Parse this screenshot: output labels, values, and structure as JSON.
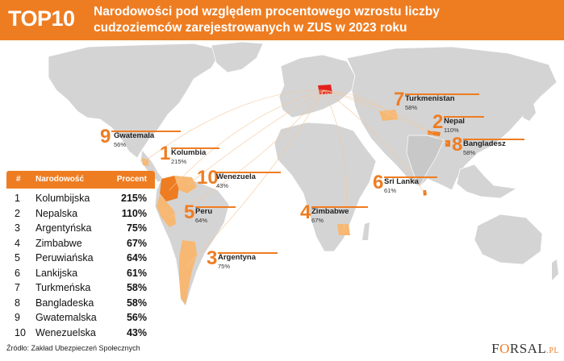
{
  "header": {
    "badge": "TOP10",
    "title": "Narodowości pod względem procentowego wzrostu liczby cudzoziemców zarejestrowanych w ZUS w 2023 roku"
  },
  "colors": {
    "accent": "#ee7d22",
    "highlight_light": "#f7b873",
    "land": "#d4d4d4",
    "poland": "#e3211c"
  },
  "map_tags": [
    {
      "rank": "1",
      "name": "Kolumbia",
      "pct": "215%"
    },
    {
      "rank": "2",
      "name": "Nepal",
      "pct": "110%"
    },
    {
      "rank": "3",
      "name": "Argentyna",
      "pct": "75%"
    },
    {
      "rank": "4",
      "name": "Zimbabwe",
      "pct": "67%"
    },
    {
      "rank": "5",
      "name": "Peru",
      "pct": "64%"
    },
    {
      "rank": "6",
      "name": "Sri Lanka",
      "pct": "61%"
    },
    {
      "rank": "7",
      "name": "Turkmenistan",
      "pct": "58%"
    },
    {
      "rank": "8",
      "name": "Bangladesz",
      "pct": "58%"
    },
    {
      "rank": "9",
      "name": "Gwatemala",
      "pct": "56%"
    },
    {
      "rank": "10",
      "name": "Wenezuela",
      "pct": "43%"
    }
  ],
  "table": {
    "col_rank": "#",
    "col_country": "Narodowość",
    "col_pct": "Procent",
    "rows": [
      {
        "rank": "1",
        "country": "Kolumbijska",
        "pct": "215%"
      },
      {
        "rank": "2",
        "country": "Nepalska",
        "pct": "110%"
      },
      {
        "rank": "3",
        "country": "Argentyńska",
        "pct": "75%"
      },
      {
        "rank": "4",
        "country": "Zimbabwe",
        "pct": "67%"
      },
      {
        "rank": "5",
        "country": "Peruwiańska",
        "pct": "64%"
      },
      {
        "rank": "6",
        "country": "Lankijska",
        "pct": "61%"
      },
      {
        "rank": "7",
        "country": "Turkmeńska",
        "pct": "58%"
      },
      {
        "rank": "8",
        "country": "Bangladeska",
        "pct": "58%"
      },
      {
        "rank": "9",
        "country": "Gwatemalska",
        "pct": "56%"
      },
      {
        "rank": "10",
        "country": "Wenezuelska",
        "pct": "43%"
      }
    ]
  },
  "chart_data": {
    "type": "table",
    "title": "Narodowości pod względem procentowego wzrostu liczby cudzoziemców zarejestrowanych w ZUS w 2023 roku",
    "categories": [
      "Kolumbijska",
      "Nepalska",
      "Argentyńska",
      "Zimbabwe",
      "Peruwiańska",
      "Lankijska",
      "Turkmeńska",
      "Bangladeska",
      "Gwatemalska",
      "Wenezuelska"
    ],
    "values": [
      215,
      110,
      75,
      67,
      64,
      61,
      58,
      58,
      56,
      43
    ]
  },
  "footer": {
    "source": "Źródło: Zakład Ubezpieczeń Społecznych",
    "logo_left": "F",
    "logo_o": "O",
    "logo_right": "RSAL",
    "logo_pl": ".PL"
  }
}
